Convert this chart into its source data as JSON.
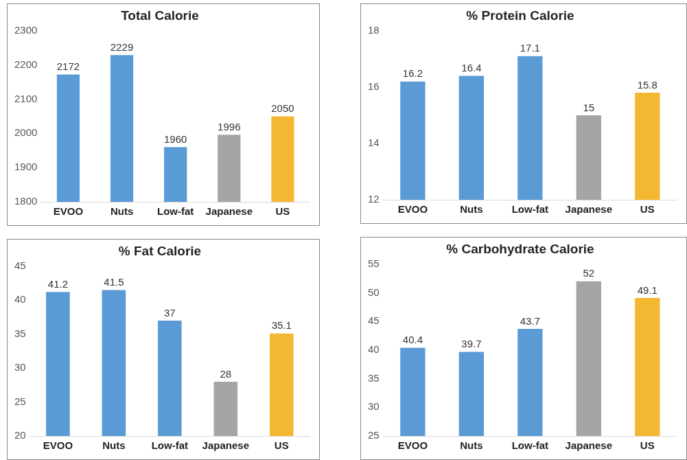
{
  "chart_data": [
    {
      "type": "bar",
      "title": "Total Calorie",
      "categories": [
        "EVOO",
        "Nuts",
        "Low-fat",
        "Japanese",
        "US"
      ],
      "values": [
        2172,
        2229,
        1960,
        1996,
        2050
      ],
      "colors": [
        "#5b9bd5",
        "#5b9bd5",
        "#5b9bd5",
        "#a5a5a5",
        "#f4b731"
      ],
      "ylim": [
        1800,
        2300
      ],
      "yticks": [
        1800,
        1900,
        2000,
        2100,
        2200,
        2300
      ],
      "data_labels": true
    },
    {
      "type": "bar",
      "title": "% Protein Calorie",
      "categories": [
        "EVOO",
        "Nuts",
        "Low-fat",
        "Japanese",
        "US"
      ],
      "values": [
        16.2,
        16.4,
        17.1,
        15,
        15.8
      ],
      "colors": [
        "#5b9bd5",
        "#5b9bd5",
        "#5b9bd5",
        "#a5a5a5",
        "#f4b731"
      ],
      "ylim": [
        12,
        18
      ],
      "yticks": [
        12,
        14,
        16,
        18
      ],
      "data_labels": true
    },
    {
      "type": "bar",
      "title": "% Fat Calorie",
      "categories": [
        "EVOO",
        "Nuts",
        "Low-fat",
        "Japanese",
        "US"
      ],
      "values": [
        41.2,
        41.5,
        37,
        28,
        35.1
      ],
      "colors": [
        "#5b9bd5",
        "#5b9bd5",
        "#5b9bd5",
        "#a5a5a5",
        "#f4b731"
      ],
      "ylim": [
        20,
        45
      ],
      "yticks": [
        20,
        25,
        30,
        35,
        40,
        45
      ],
      "data_labels": true
    },
    {
      "type": "bar",
      "title": "% Carbohydrate Calorie",
      "categories": [
        "EVOO",
        "Nuts",
        "Low-fat",
        "Japanese",
        "US"
      ],
      "values": [
        40.4,
        39.7,
        43.7,
        52,
        49.1
      ],
      "colors": [
        "#5b9bd5",
        "#5b9bd5",
        "#5b9bd5",
        "#a5a5a5",
        "#f4b731"
      ],
      "ylim": [
        25,
        55
      ],
      "yticks": [
        25,
        30,
        35,
        40,
        45,
        50,
        55
      ],
      "data_labels": true
    }
  ]
}
